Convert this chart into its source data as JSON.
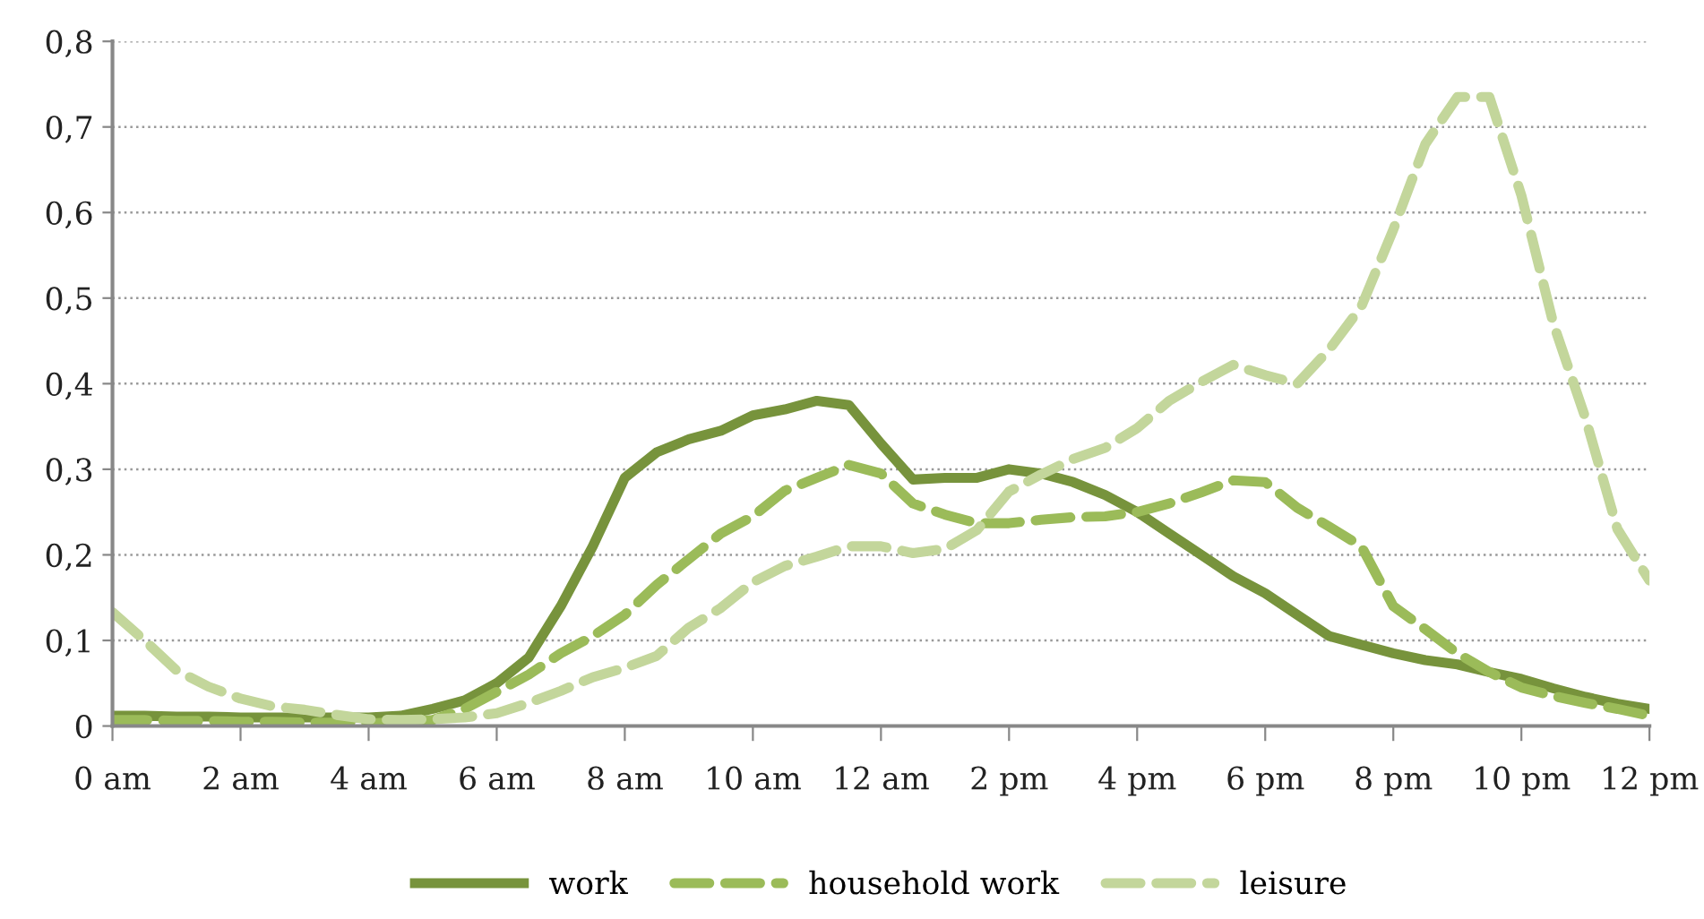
{
  "chart_data": {
    "type": "line",
    "categories": [
      "0 am",
      null,
      null,
      null,
      "2 am",
      null,
      null,
      null,
      "4 am",
      null,
      null,
      null,
      "6 am",
      null,
      null,
      null,
      "8 am",
      null,
      null,
      null,
      "10 am",
      null,
      null,
      null,
      "12 am",
      null,
      null,
      null,
      "2 pm",
      null,
      null,
      null,
      "4 pm",
      null,
      null,
      null,
      "6 pm",
      null,
      null,
      null,
      "8 pm",
      null,
      null,
      null,
      "10 pm",
      null,
      null,
      null,
      "12 pm"
    ],
    "ylim": [
      0,
      0.8
    ],
    "yticks": [
      0,
      {
        "value": 0.1,
        "label": "0,1"
      },
      {
        "value": 0.2,
        "label": "0,2"
      },
      {
        "value": 0.3,
        "label": "0,3"
      },
      {
        "value": 0.4,
        "label": "0,4"
      },
      {
        "value": 0.5,
        "label": "0,5"
      },
      {
        "value": 0.6,
        "label": "0,6"
      },
      {
        "value": 0.7,
        "label": "0,7"
      },
      {
        "value": 0.8,
        "label": "0,8"
      }
    ],
    "grid": "y",
    "legend": "bottom",
    "marker": "none",
    "series": [
      {
        "name": "work",
        "color": "#77933c",
        "line_style": "solid",
        "values": [
          0.012,
          0.012,
          0.011,
          0.011,
          0.01,
          0.01,
          0.01,
          0.01,
          0.01,
          0.012,
          0.02,
          0.03,
          0.05,
          0.08,
          0.14,
          0.21,
          0.29,
          0.32,
          0.335,
          0.345,
          0.363,
          0.37,
          0.38,
          0.375,
          0.33,
          0.288,
          0.29,
          0.29,
          0.3,
          0.295,
          0.285,
          0.27,
          0.25,
          0.225,
          0.2,
          0.175,
          0.155,
          0.13,
          0.105,
          0.095,
          0.085,
          0.077,
          0.072,
          0.063,
          0.055,
          0.044,
          0.034,
          0.026,
          0.02
        ]
      },
      {
        "name": "household work",
        "color": "#9bbb59",
        "line_style": "dashed",
        "values": [
          0.007,
          0.007,
          0.006,
          0.006,
          0.005,
          0.005,
          0.004,
          0.004,
          0.003,
          0.005,
          0.007,
          0.02,
          0.04,
          0.06,
          0.085,
          0.105,
          0.13,
          0.165,
          0.195,
          0.225,
          0.245,
          0.275,
          0.29,
          0.305,
          0.295,
          0.26,
          0.247,
          0.237,
          0.237,
          0.241,
          0.244,
          0.245,
          0.25,
          0.26,
          0.273,
          0.287,
          0.285,
          0.255,
          0.233,
          0.21,
          0.14,
          0.113,
          0.085,
          0.063,
          0.045,
          0.035,
          0.027,
          0.02,
          0.012
        ]
      },
      {
        "name": "leisure",
        "color": "#c3d69b",
        "line_style": "dashed",
        "values": [
          0.133,
          0.1,
          0.065,
          0.046,
          0.032,
          0.023,
          0.019,
          0.013,
          0.008,
          0.007,
          0.008,
          0.01,
          0.015,
          0.027,
          0.041,
          0.057,
          0.068,
          0.082,
          0.115,
          0.138,
          0.168,
          0.187,
          0.198,
          0.21,
          0.21,
          0.202,
          0.207,
          0.229,
          0.274,
          0.294,
          0.312,
          0.325,
          0.348,
          0.38,
          0.402,
          0.422,
          0.41,
          0.4,
          0.44,
          0.49,
          0.58,
          0.68,
          0.735,
          0.735,
          0.62,
          0.47,
          0.36,
          0.23,
          0.17
        ]
      }
    ]
  }
}
